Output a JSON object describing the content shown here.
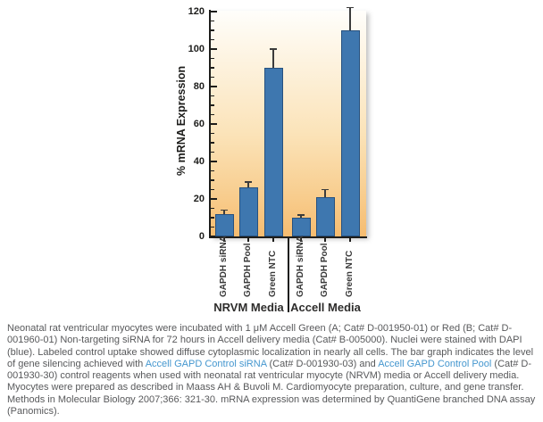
{
  "chart_data": {
    "type": "bar",
    "title": "",
    "ylabel": "% mRNA Expression",
    "xlabel": "",
    "ylim": [
      0,
      120
    ],
    "y_ticks": [
      0,
      20,
      40,
      60,
      80,
      100,
      120
    ],
    "y_major_step": 20,
    "y_minor_step": 5,
    "grid": false,
    "legend": "none",
    "groups": [
      {
        "label": "NRVM Media",
        "bars": [
          {
            "label": "GAPDH siRNA",
            "value": 12,
            "error_plus": 2
          },
          {
            "label": "GAPDH Pool",
            "value": 26,
            "error_plus": 3
          },
          {
            "label": "Green NTC",
            "value": 90,
            "error_plus": 10
          }
        ]
      },
      {
        "label": "Accell Media",
        "bars": [
          {
            "label": "GAPDH siRNA",
            "value": 10,
            "error_plus": 1.5
          },
          {
            "label": "GAPDH Pool",
            "value": 21,
            "error_plus": 4
          },
          {
            "label": "Green NTC",
            "value": 110,
            "error_plus": 12
          }
        ]
      }
    ],
    "colors": {
      "bar_fill": "#3e77af",
      "bar_border": "#27517f",
      "plot_gradient_top": "#fffefb",
      "plot_gradient_bottom": "#f6bc70",
      "axis": "#1d1d1b",
      "error_bar": "#3c3c3c"
    }
  },
  "caption": {
    "segments": [
      {
        "text": "Neonatal rat ventricular myocytes were incubated with 1 μM Accell Green (A; Cat# D-001950-01) or Red (B; Cat# D-001960-01) Non-targeting siRNA for 72 hours in Accell delivery media (Cat# B-005000). Nuclei were stained with DAPI (blue). Labeled control uptake showed diffuse cytoplasmic localization in nearly all cells. The bar graph indicates the level of gene silencing achieved with ",
        "link": false
      },
      {
        "text": "Accell GAPD Control siRNA",
        "link": true
      },
      {
        "text": " (Cat# D-001930-03) and ",
        "link": false
      },
      {
        "text": "Accell GAPD Control Pool",
        "link": true
      },
      {
        "text": " (Cat# D-001930-30) control reagents when used with neonatal rat ventricular myocyte (NRVM) media or Accell delivery media. Myocytes were prepared as described in Maass AH & Buvoli M. Cardiomyocyte preparation, culture, and gene transfer. Methods in Molecular Biology 2007;366: 321-30. mRNA expression was determined by QuantiGene branched DNA assay (Panomics).",
        "link": false
      }
    ]
  }
}
